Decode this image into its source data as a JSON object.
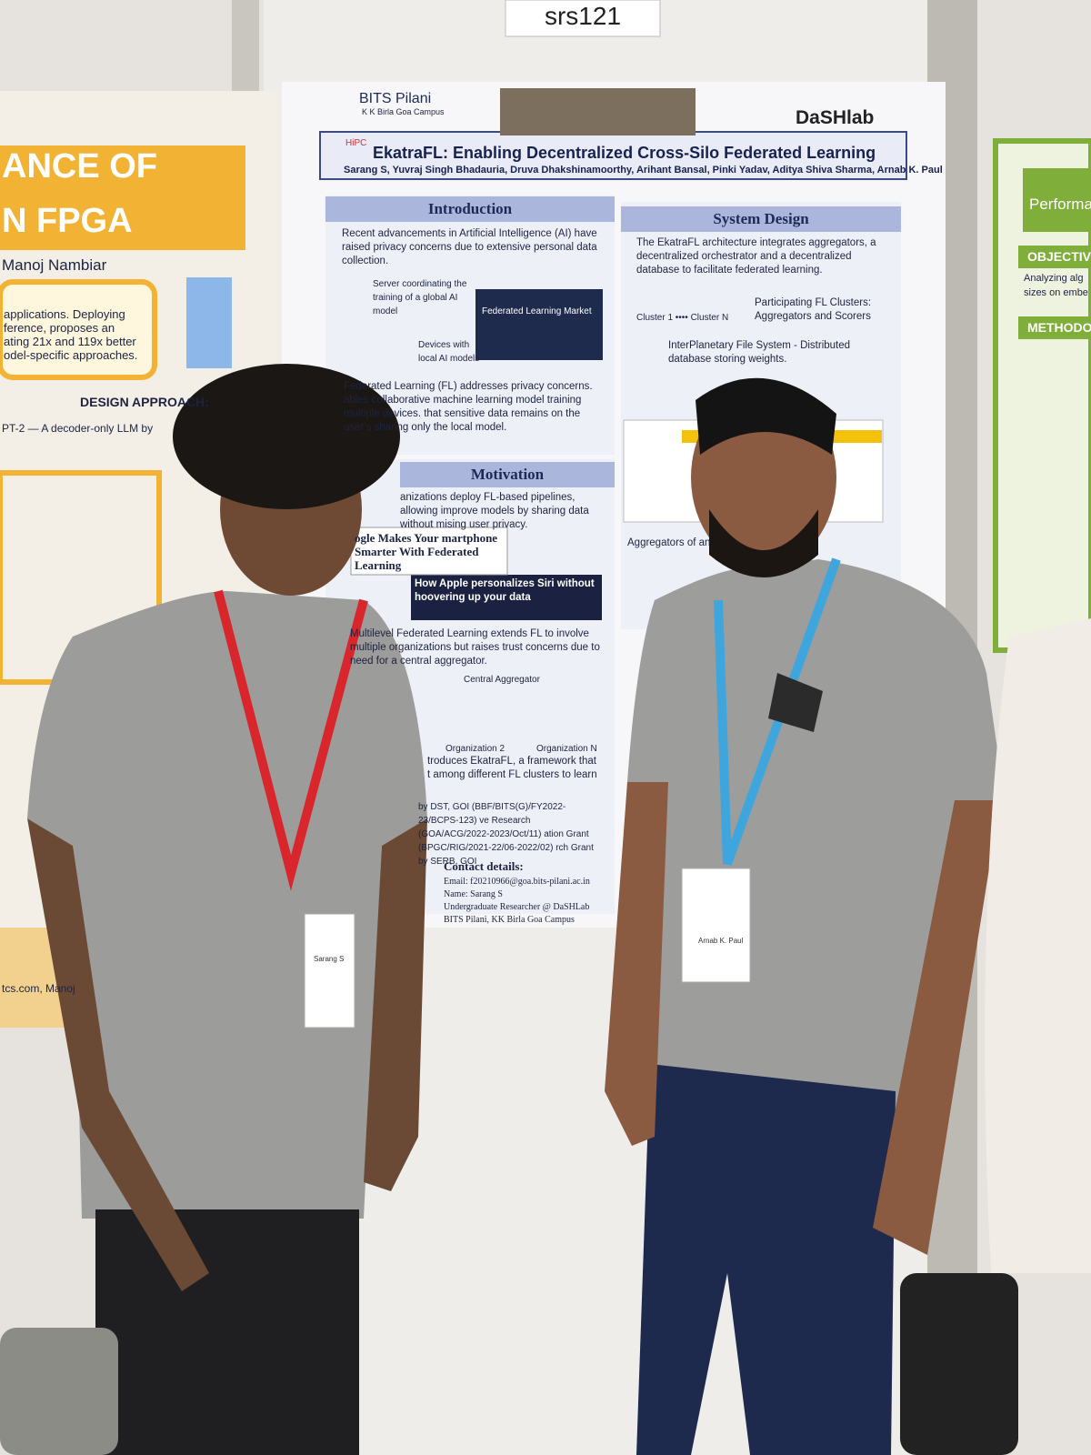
{
  "booth_label": "srs121",
  "left_poster": {
    "title_lines": [
      "ANCE OF",
      "N FPGA"
    ],
    "author": "Manoj Nambiar",
    "lines": [
      "applications. Deploying",
      "ference, proposes an",
      "ating 21x and 119x better",
      "odel-specific approaches.",
      "PT-2 — A decoder-only LLM by",
      "tcs.com, Manoj"
    ],
    "heading": "DESIGN APPROACH:"
  },
  "main_poster": {
    "logos": [
      "BITS Pilani",
      "K K Birla Goa Campus",
      "DaSHlab",
      "HiPC"
    ],
    "title": "EkatraFL: Enabling Decentralized Cross-Silo Federated Learning",
    "authors": "Sarang S, Yuvraj Singh Bhadauria, Druva Dhakshinamoorthy, Arihant Bansal, Pinki Yadav, Aditya Shiva Sharma, Arnab K. Paul",
    "introduction": {
      "heading": "Introduction",
      "paragraphs": [
        "Recent advancements in Artificial Intelligence (AI) have raised privacy concerns due to extensive personal data collection.",
        "Federated Learning (FL) addresses privacy concerns. ables collaborative machine learning model training multiple devices. that sensitive data remains on the user's sharing only the local model."
      ],
      "figure_labels": [
        "Server coordinating the training of a global AI model",
        "Devices with local AI models",
        "Federated Learning Market"
      ]
    },
    "motivation": {
      "heading": "Motivation",
      "paragraphs": [
        "anizations deploy FL-based pipelines, allowing improve models by sharing data without mising user privacy.",
        "Multilevel Federated Learning extends FL to involve multiple organizations but raises trust concerns due to need for a central aggregator.",
        "troduces EkatraFL, a framework that t among different FL clusters to learn"
      ],
      "figure_labels": [
        "ogle Makes Your martphone Smarter With Federated Learning",
        "How Apple personalizes Siri without hoovering up your data",
        "Central Aggregator",
        "Organization 2",
        "Organization N"
      ]
    },
    "system_design": {
      "heading": "System Design",
      "paragraphs": [
        "The EkatraFL architecture integrates aggregators, a decentralized orchestrator and a decentralized database to facilitate federated learning.",
        "Participating FL Clusters: Aggregators and Scorers",
        "InterPlanetary File System - Distributed database storing weights.",
        "Aggregators of an"
      ],
      "figure_labels": [
        "Cluster 1 •••• Cluster N"
      ]
    },
    "acknowledgements": "by DST, GOI (BBF/BITS(G)/FY2022-23/BCPS-123) ve Research (GOA/ACG/2022-2023/Oct/11) ation Grant (BPGC/RIG/2021-22/06-2022/02) rch Grant by SERB, GOI",
    "contact": {
      "heading": "Contact details:",
      "lines": [
        "Email: f20210966@goa.bits-pilani.ac.in",
        "Name: Sarang S",
        "Undergraduate Researcher @ DaSHLab",
        "BITS Pilani, KK Birla Goa Campus"
      ]
    }
  },
  "right_poster": {
    "lines": [
      "Performa",
      "OBJECTIV",
      "Analyzing alg",
      "sizes on embe",
      "METHODO"
    ]
  },
  "badges": [
    "Sarang S",
    "Arnab K. Paul"
  ]
}
